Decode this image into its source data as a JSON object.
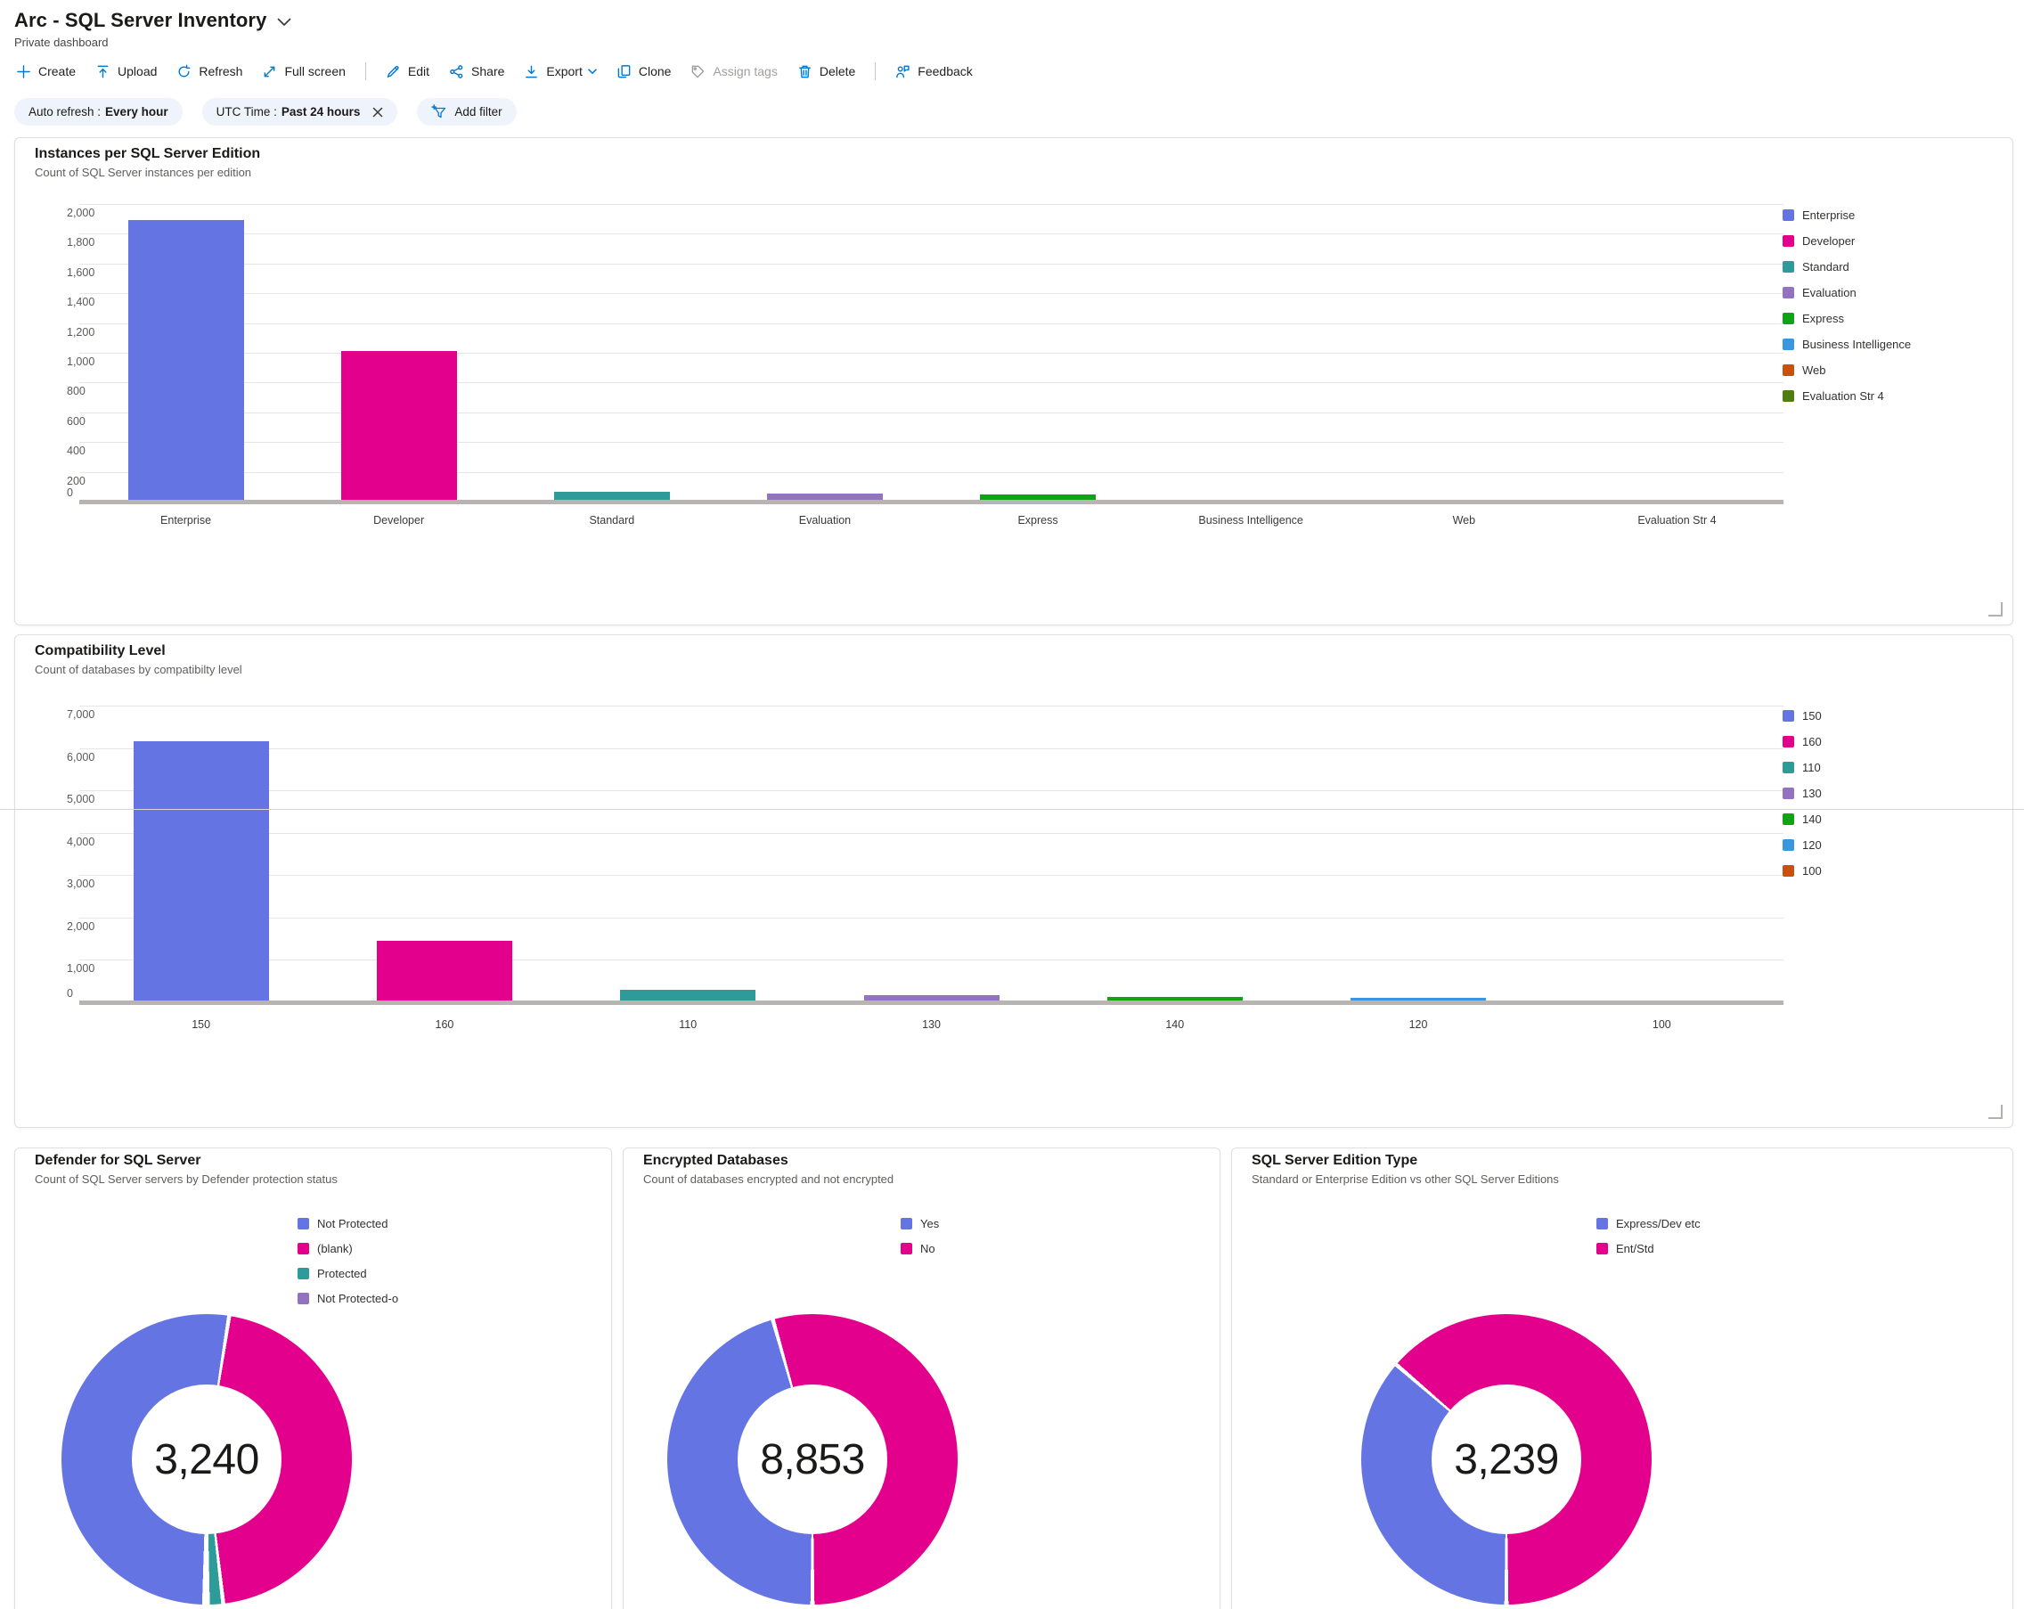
{
  "header": {
    "title": "Arc - SQL Server Inventory",
    "subtitle": "Private dashboard"
  },
  "toolbar": {
    "create": "Create",
    "upload": "Upload",
    "refresh": "Refresh",
    "full_screen": "Full screen",
    "edit": "Edit",
    "share": "Share",
    "export": "Export",
    "clone": "Clone",
    "assign_tags": "Assign tags",
    "delete": "Delete",
    "feedback": "Feedback"
  },
  "filters": {
    "auto_refresh_label": "Auto refresh :",
    "auto_refresh_value": "Every hour",
    "utc_label": "UTC Time :",
    "utc_value": "Past 24 hours",
    "add_filter": "Add filter"
  },
  "palette": {
    "blue": "#6474E3",
    "magenta": "#E3008C",
    "teal": "#2E9B9B",
    "purple": "#9373C0",
    "green": "#10A316",
    "light_blue": "#3A96DD",
    "orange": "#CA5010",
    "olive": "#4F7D10",
    "toolbar_icon": "#0078D4",
    "disabled": "#A19F9D"
  },
  "chart_data": [
    {
      "type": "bar",
      "title": "Instances per SQL Server Edition",
      "subtitle": "Count of SQL Server instances per edition",
      "categories": [
        "Enterprise",
        "Developer",
        "Standard",
        "Evaluation",
        "Express",
        "Business Intelligence",
        "Web",
        "Evaluation Str 4"
      ],
      "values": [
        1890,
        1010,
        66,
        54,
        48,
        8,
        6,
        5
      ],
      "colors": [
        "blue",
        "magenta",
        "teal",
        "purple",
        "green",
        "light_blue",
        "orange",
        "olive"
      ],
      "legend": [
        "Enterprise",
        "Developer",
        "Standard",
        "Evaluation",
        "Express",
        "Business Intelligence",
        "Web",
        "Evaluation Str 4"
      ],
      "legend_position": "right",
      "xlabel": "",
      "ylabel": "",
      "ylim": [
        0,
        2000
      ],
      "ytick_step": 200,
      "yticks": [
        "0",
        "200",
        "400",
        "600",
        "800",
        "1,000",
        "1,200",
        "1,400",
        "1,600",
        "1,800",
        "2,000"
      ],
      "grid": true
    },
    {
      "type": "bar",
      "title": "Compatibility Level",
      "subtitle": "Count of databases by compatibilty level",
      "categories": [
        "150",
        "160",
        "110",
        "130",
        "140",
        "120",
        "100"
      ],
      "values": [
        6150,
        1450,
        290,
        160,
        130,
        110,
        30
      ],
      "colors": [
        "blue",
        "magenta",
        "teal",
        "purple",
        "green",
        "light_blue",
        "orange"
      ],
      "legend": [
        "150",
        "160",
        "110",
        "130",
        "140",
        "120",
        "100"
      ],
      "legend_position": "right",
      "xlabel": "",
      "ylabel": "",
      "ylim": [
        0,
        7000
      ],
      "ytick_step": 1000,
      "yticks": [
        "0",
        "1,000",
        "2,000",
        "3,000",
        "4,000",
        "5,000",
        "6,000",
        "7,000"
      ],
      "grid": true
    },
    {
      "type": "donut",
      "title": "Defender for SQL Server",
      "subtitle": "Count of SQL Server servers by Defender protection status",
      "total": "3,240",
      "rotate_deg": 181,
      "slices": [
        {
          "label": "Not Protected",
          "color": "blue",
          "pct": 52.2
        },
        {
          "label": "(blank)",
          "color": "magenta",
          "pct": 45.7
        },
        {
          "label": "Protected",
          "color": "teal",
          "pct": 1.7
        },
        {
          "label": "Not Protected-o",
          "color": "purple",
          "pct": 0.4
        }
      ],
      "legend_position": "right"
    },
    {
      "type": "donut",
      "title": "Encrypted Databases",
      "subtitle": "Count of databases encrypted and not encrypted",
      "total": "8,853",
      "rotate_deg": 180,
      "slices": [
        {
          "label": "Yes",
          "color": "blue",
          "pct": 45.6
        },
        {
          "label": "No",
          "color": "magenta",
          "pct": 54.4
        }
      ],
      "legend_position": "right"
    },
    {
      "type": "donut",
      "title": "SQL Server Edition Type",
      "subtitle": "Standard or Enterprise Edition vs other SQL Server Editions",
      "total": "3,239",
      "rotate_deg": 180,
      "slices": [
        {
          "label": "Express/Dev etc",
          "color": "blue",
          "pct": 36.3
        },
        {
          "label": "Ent/Std",
          "color": "magenta",
          "pct": 63.7
        }
      ],
      "legend_position": "right"
    }
  ]
}
